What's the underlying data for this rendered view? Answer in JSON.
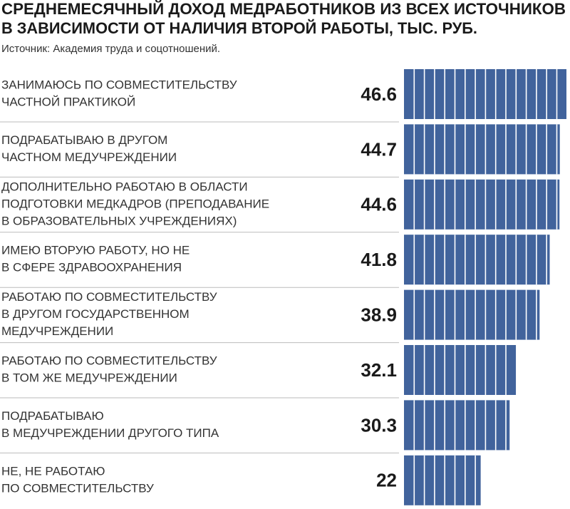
{
  "chart_data": {
    "type": "hbar",
    "title": [
      "СРЕДНЕМЕСЯЧНЫЙ ДОХОД МЕДРАБОТНИКОВ ИЗ ВСЕХ ИСТОЧНИКОВ",
      "В ЗАВИСИМОСТИ ОТ НАЛИЧИЯ ВТОРОЙ РАБОТЫ, ТЫС. РУБ."
    ],
    "subtitle": "Источник: Академия труда и соцотношений.",
    "categories": [
      [
        "ЗАНИМАЮСЬ ПО СОВМЕСТИТЕЛЬСТВУ",
        "ЧАСТНОЙ ПРАКТИКОЙ"
      ],
      [
        "ПОДРАБАТЫВАЮ  В ДРУГОМ",
        "ЧАСТНОМ МЕДУЧРЕЖДЕНИИ"
      ],
      [
        "ДОПОЛНИТЕЛЬНО РАБОТАЮ В ОБЛАСТИ",
        "ПОДГОТОВКИ МЕДКАДРОВ (ПРЕПОДАВАНИЕ",
        "В ОБРАЗОВАТЕЛЬНЫХ УЧРЕЖДЕНИЯХ)"
      ],
      [
        "ИМЕЮ ВТОРУЮ РАБОТУ, НО НЕ",
        "В СФЕРЕ ЗДРАВООХРАНЕНИЯ"
      ],
      [
        "РАБОТАЮ ПО СОВМЕСТИТЕЛЬСТВУ",
        "В ДРУГОМ ГОСУДАРСТВЕННОМ",
        "МЕДУЧРЕЖДЕНИИ"
      ],
      [
        "РАБОТАЮ ПО СОВМЕСТИТЕЛЬСТВУ",
        "В ТОМ ЖЕ МЕДУЧРЕЖДЕНИИ"
      ],
      [
        "ПОДРАБАТЫВАЮ",
        "В МЕДУЧРЕЖДЕНИИ ДРУГОГО ТИПА"
      ],
      [
        "НЕ, НЕ РАБОТАЮ",
        "ПО СОВМЕСТИТЕЛЬСТВУ"
      ]
    ],
    "values": [
      46.6,
      44.7,
      44.6,
      41.8,
      38.9,
      32.1,
      30.3,
      22
    ],
    "color": "#41639c"
  }
}
